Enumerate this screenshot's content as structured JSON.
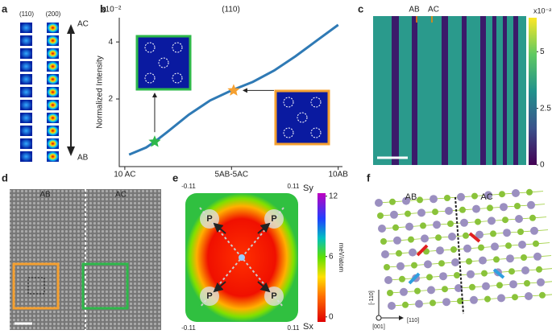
{
  "panel_labels": [
    "a",
    "b",
    "c",
    "d",
    "e",
    "f"
  ],
  "panel_a": {
    "column_labels": [
      "(110)",
      "(200)"
    ],
    "top_label": "AC",
    "bottom_label": "AB"
  },
  "chart_data": {
    "type": "line",
    "title": "(110)",
    "y_label": "Normalized Intensity",
    "y_scale_label": "x10⁻²",
    "x": [
      0.2,
      1,
      1.4,
      2,
      3,
      4,
      5,
      6,
      7,
      8,
      9,
      10
    ],
    "series": [
      {
        "color": "#2f7ab5",
        "values": [
          0.05,
          0.3,
          0.5,
          0.85,
          1.45,
          1.95,
          2.3,
          2.6,
          3.0,
          3.5,
          4.05,
          4.6
        ]
      }
    ],
    "markers": [
      {
        "x": 1.4,
        "y": 0.5,
        "color": "#2eb84a"
      },
      {
        "x": 5.1,
        "y": 2.3,
        "color": "#f5a030"
      }
    ],
    "xlim": [
      -0.26,
      10.2
    ],
    "xticks": [
      {
        "value": 0,
        "label": "10 AC"
      },
      {
        "value": 5,
        "label": "5AB-5AC"
      },
      {
        "value": 10,
        "label": "10AB"
      }
    ],
    "ylim": [
      -0.37,
      4.85
    ],
    "yticks": [
      2,
      4
    ]
  },
  "panel_c": {
    "labels": [
      "AB",
      "AC"
    ],
    "colorbar": {
      "scale_label": "x10⁻²",
      "lim": [
        0,
        6.5
      ],
      "ticks": [
        0,
        2.5,
        5
      ]
    }
  },
  "panel_d": {
    "labels": [
      "AB",
      "AC"
    ]
  },
  "panel_e": {
    "corner_labels": [
      "-0.11",
      "0.11",
      "-0.11",
      "0.11"
    ],
    "axis_labels": [
      "Sy",
      "Sx"
    ],
    "p_label": "P",
    "colorbar": {
      "unit": "meV/atom",
      "lim": [
        -0.5,
        12.3
      ],
      "ticks": [
        0,
        6,
        12
      ]
    }
  },
  "panel_f": {
    "labels": [
      "AB",
      "AC"
    ],
    "directions": [
      "[-110]",
      "[001]",
      "[110]"
    ]
  }
}
